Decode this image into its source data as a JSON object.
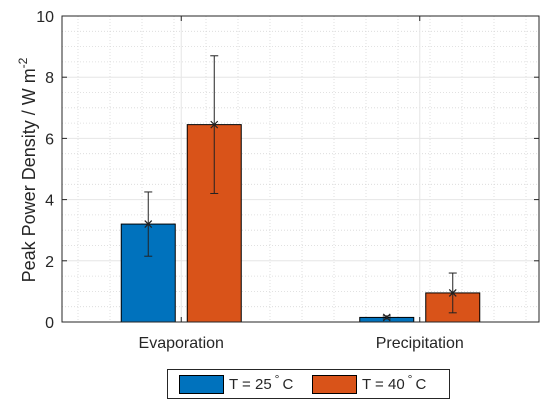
{
  "chart_data": {
    "type": "bar",
    "categories": [
      "Evaporation",
      "Precipitation"
    ],
    "ylabel_main": "Peak Power Density / W m",
    "ylabel_sup": "-2",
    "ylim": [
      0,
      10
    ],
    "yticks": [
      0,
      2,
      4,
      6,
      8,
      10
    ],
    "grid": true,
    "minor_grid": true,
    "legend_position": "bottom",
    "series": [
      {
        "name_prefix": "T = 25",
        "name_degree": "°",
        "name_unit": "C",
        "color": "#0072BD",
        "values": [
          3.2,
          0.15
        ],
        "err_low": [
          2.15,
          0.1
        ],
        "err_high": [
          4.25,
          0.2
        ]
      },
      {
        "name_prefix": "T = 40",
        "name_degree": "°",
        "name_unit": "C",
        "color": "#D95319",
        "values": [
          6.45,
          0.95
        ],
        "err_low": [
          4.2,
          0.3
        ],
        "err_high": [
          8.7,
          1.6
        ]
      }
    ]
  }
}
